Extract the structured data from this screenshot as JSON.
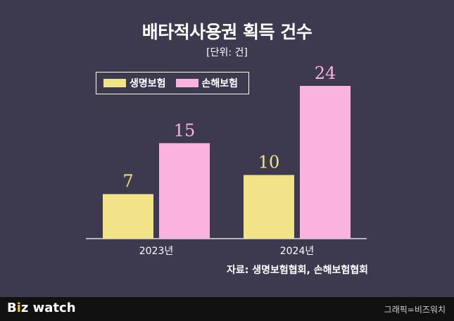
{
  "chart_data": {
    "type": "bar",
    "title": "배타적사용권 획득 건수",
    "subtitle": "[단위: 건]",
    "categories": [
      "2023년",
      "2024년"
    ],
    "series": [
      {
        "name": "생명보험",
        "values": [
          7,
          10
        ],
        "color": "#f3e388"
      },
      {
        "name": "손해보험",
        "values": [
          15,
          24
        ],
        "color": "#f9b3de"
      }
    ],
    "ylim": [
      0,
      24
    ],
    "source": "자료: 생명보험협회, 손해보험협회"
  },
  "footer": {
    "brand_prefix": "B",
    "brand_accent": "i",
    "brand_rest": "z watch",
    "credit": "그래픽=비즈워치"
  }
}
